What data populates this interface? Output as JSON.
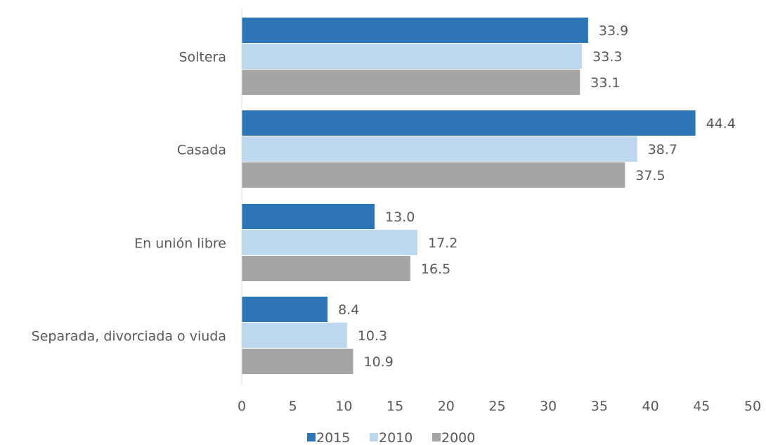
{
  "chart_data": {
    "type": "bar",
    "orientation": "horizontal",
    "categories": [
      "Soltera",
      "Casada",
      "En unión libre",
      "Separada, divorciada o viuda"
    ],
    "series": [
      {
        "name": "2015",
        "color": "#2e75b6",
        "values": [
          33.9,
          44.4,
          13.0,
          8.4
        ]
      },
      {
        "name": "2010",
        "color": "#bdd7ee",
        "values": [
          33.3,
          38.7,
          17.2,
          10.3
        ]
      },
      {
        "name": "2000",
        "color": "#a5a5a5",
        "values": [
          33.1,
          37.5,
          16.5,
          10.9
        ]
      }
    ],
    "data_labels": [
      [
        "33.9",
        "44.4",
        "13.0",
        "8.4"
      ],
      [
        "33.3",
        "38.7",
        "17.2",
        "10.3"
      ],
      [
        "33.1",
        "37.5",
        "16.5",
        "10.9"
      ]
    ],
    "xlim": [
      0,
      50
    ],
    "xticks": [
      0,
      5,
      10,
      15,
      20,
      25,
      30,
      35,
      40,
      45,
      50
    ],
    "legend_position": "bottom",
    "grid": false,
    "title": "",
    "xlabel": "",
    "ylabel": ""
  }
}
